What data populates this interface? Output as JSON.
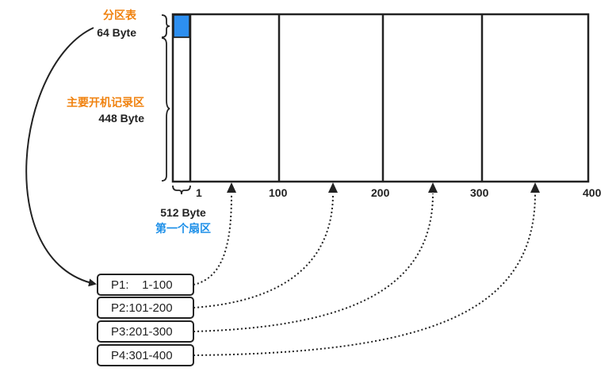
{
  "colors": {
    "orange": "#f0820f",
    "blue": "#1e90e8",
    "stroke": "#222222",
    "mbr_fill": "#2d8ff0"
  },
  "labels": {
    "partition_table": "分区表",
    "partition_table_size": "64 Byte",
    "boot_record": "主要开机记录区",
    "boot_record_size": "448 Byte",
    "sector_size": "512 Byte",
    "first_sector": "第一个扇区"
  },
  "ticks": [
    "1",
    "100",
    "200",
    "300",
    "400"
  ],
  "partitions": [
    {
      "label": "P1:    1-100"
    },
    {
      "label": "P2:101-200"
    },
    {
      "label": "P3:201-300"
    },
    {
      "label": "P4:301-400"
    }
  ]
}
